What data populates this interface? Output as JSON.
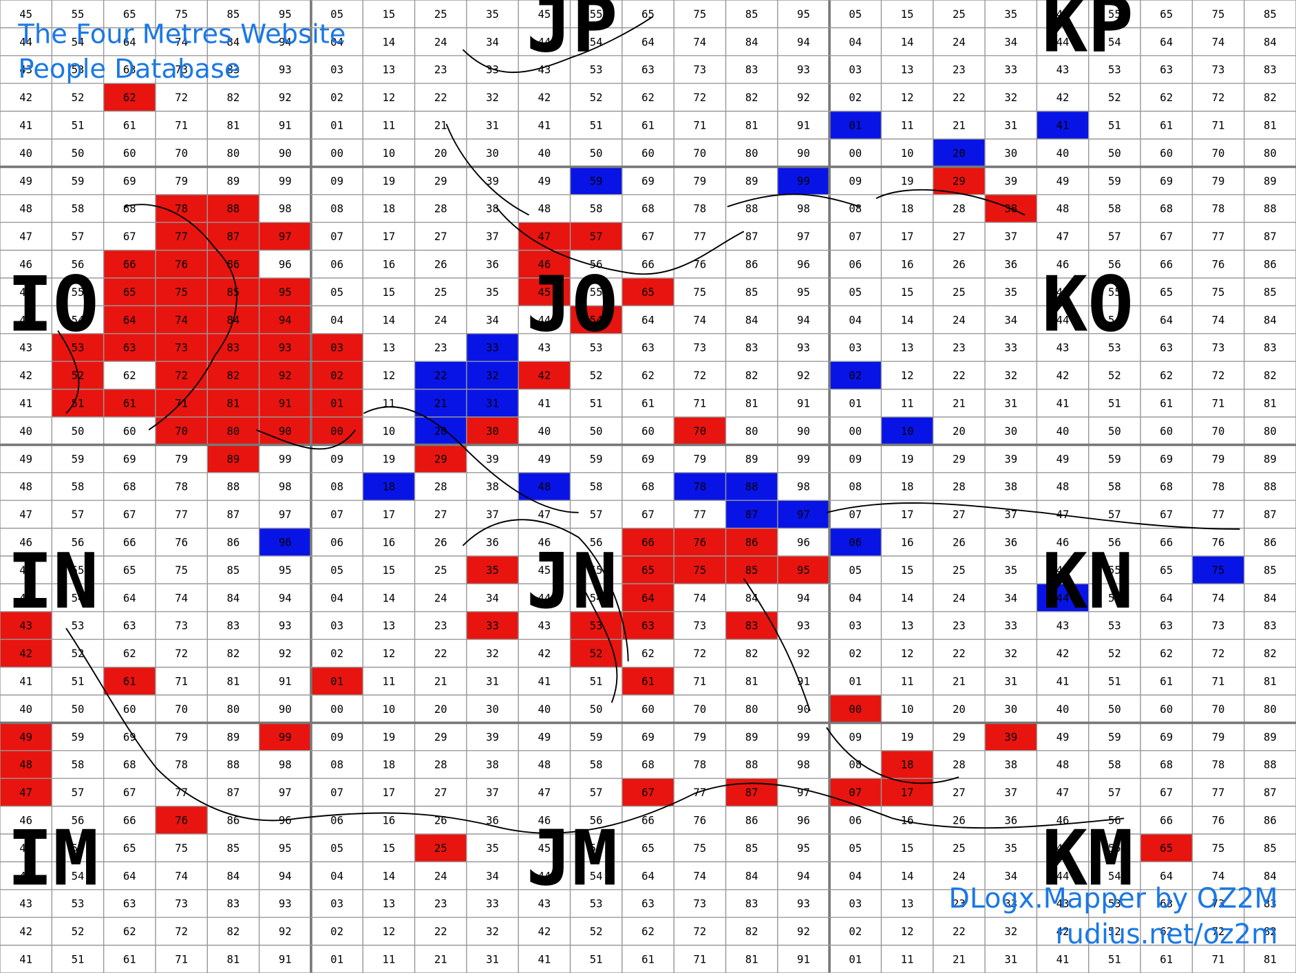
{
  "header": {
    "title": "The Four Metres Website",
    "subtitle": "People Database"
  },
  "fields": [
    "JP",
    "KP",
    "IO",
    "JO",
    "KO",
    "IN",
    "JN",
    "KN",
    "IM",
    "JM",
    "KM"
  ],
  "credits": [
    "DLogx.Mapper by OZ2M",
    "rudius.net/oz2m"
  ],
  "grid": {
    "rows": [
      [
        "45",
        "55",
        "65",
        "75",
        "85",
        "95",
        "05",
        "15",
        "25",
        "35",
        "45",
        "55",
        "65",
        "75",
        "85",
        "95",
        "05",
        "15",
        "25",
        "35",
        "45",
        "55",
        "65",
        "75",
        "85"
      ],
      [
        "44",
        "54",
        "64",
        "74",
        "84",
        "94",
        "04",
        "14",
        "24",
        "34",
        "44",
        "54",
        "64",
        "74",
        "84",
        "94",
        "04",
        "14",
        "24",
        "34",
        "44",
        "54",
        "64",
        "74",
        "84"
      ],
      [
        "43",
        "53",
        "63",
        "73",
        "83",
        "93",
        "03",
        "13",
        "23",
        "33",
        "43",
        "53",
        "63",
        "73",
        "83",
        "93",
        "03",
        "13",
        "23",
        "33",
        "43",
        "53",
        "63",
        "73",
        "83"
      ],
      [
        "42",
        "52",
        {
          "label": "62",
          "color": "#e8140f"
        },
        "72",
        "82",
        "92",
        "02",
        "12",
        "22",
        "32",
        "42",
        "52",
        "62",
        "72",
        "82",
        "92",
        "02",
        "12",
        "22",
        "32",
        "42",
        "52",
        "62",
        "72",
        "82"
      ],
      [
        "41",
        "51",
        "61",
        "71",
        "81",
        "91",
        "01",
        "11",
        "21",
        "31",
        "41",
        "51",
        "61",
        "71",
        "81",
        "91",
        {
          "label": "01",
          "color": "#0814e6"
        },
        "11",
        "21",
        "31",
        {
          "label": "41",
          "color": "#0814e6"
        },
        "51",
        "61",
        "71",
        "81"
      ],
      [
        "40",
        "50",
        "60",
        "70",
        "80",
        "90",
        "00",
        "10",
        "20",
        "30",
        "40",
        "50",
        "60",
        "70",
        "80",
        "90",
        "00",
        "10",
        {
          "label": "20",
          "color": "#0814e6"
        },
        "30",
        "40",
        "50",
        "60",
        "70",
        "80"
      ],
      [
        "49",
        "59",
        "69",
        "79",
        "89",
        "99",
        "09",
        "19",
        "29",
        "39",
        "49",
        {
          "label": "59",
          "color": "#0814e6"
        },
        "69",
        "79",
        "89",
        {
          "label": "99",
          "color": "#0814e6"
        },
        "09",
        "19",
        {
          "label": "29",
          "color": "#e8140f"
        },
        "39",
        "49",
        "59",
        "69",
        "79",
        "89"
      ],
      [
        "48",
        "58",
        "68",
        {
          "label": "78",
          "color": "#e8140f"
        },
        {
          "label": "88",
          "color": "#e8140f"
        },
        "98",
        "08",
        "18",
        "28",
        "38",
        "48",
        "58",
        "68",
        "78",
        "88",
        "98",
        "08",
        "18",
        "28",
        {
          "label": "38",
          "color": "#e8140f"
        },
        "48",
        "58",
        "68",
        "78",
        "88"
      ],
      [
        "47",
        "57",
        "67",
        {
          "label": "77",
          "color": "#e8140f"
        },
        {
          "label": "87",
          "color": "#e8140f"
        },
        {
          "label": "97",
          "color": "#e8140f"
        },
        "07",
        "17",
        "27",
        "37",
        {
          "label": "47",
          "color": "#e8140f"
        },
        {
          "label": "57",
          "color": "#e8140f"
        },
        "67",
        "77",
        "87",
        "97",
        "07",
        "17",
        "27",
        "37",
        "47",
        "57",
        "67",
        "77",
        "87"
      ],
      [
        "46",
        "56",
        {
          "label": "66",
          "color": "#e8140f"
        },
        {
          "label": "76",
          "color": "#e8140f"
        },
        {
          "label": "86",
          "color": "#e8140f"
        },
        "96",
        "06",
        "16",
        "26",
        "36",
        {
          "label": "46",
          "color": "#e8140f"
        },
        "56",
        "66",
        "76",
        "86",
        "96",
        "06",
        "16",
        "26",
        "36",
        "46",
        "56",
        "66",
        "76",
        "86"
      ],
      [
        "45",
        "55",
        {
          "label": "65",
          "color": "#e8140f"
        },
        {
          "label": "75",
          "color": "#e8140f"
        },
        {
          "label": "85",
          "color": "#e8140f"
        },
        {
          "label": "95",
          "color": "#e8140f"
        },
        "05",
        "15",
        "25",
        "35",
        {
          "label": "45",
          "color": "#e8140f"
        },
        "55",
        {
          "label": "65",
          "color": "#e8140f"
        },
        "75",
        "85",
        "95",
        "05",
        "15",
        "25",
        "35",
        "45",
        "55",
        "65",
        "75",
        "85"
      ],
      [
        "44",
        "54",
        {
          "label": "64",
          "color": "#e8140f"
        },
        {
          "label": "74",
          "color": "#e8140f"
        },
        {
          "label": "84",
          "color": "#e8140f"
        },
        {
          "label": "94",
          "color": "#e8140f"
        },
        "04",
        "14",
        "24",
        "34",
        "44",
        {
          "label": "54",
          "color": "#e8140f"
        },
        "64",
        "74",
        "84",
        "94",
        "04",
        "14",
        "24",
        "34",
        "44",
        "54",
        "64",
        "74",
        "84"
      ],
      [
        "43",
        {
          "label": "53",
          "color": "#e8140f"
        },
        {
          "label": "63",
          "color": "#e8140f"
        },
        {
          "label": "73",
          "color": "#e8140f"
        },
        {
          "label": "83",
          "color": "#e8140f"
        },
        {
          "label": "93",
          "color": "#e8140f"
        },
        {
          "label": "03",
          "color": "#e8140f"
        },
        "13",
        "23",
        {
          "label": "33",
          "color": "#0814e6"
        },
        "43",
        "53",
        "63",
        "73",
        "83",
        "93",
        "03",
        "13",
        "23",
        "33",
        "43",
        "53",
        "63",
        "73",
        "83"
      ],
      [
        "42",
        {
          "label": "52",
          "color": "#e8140f"
        },
        "62",
        {
          "label": "72",
          "color": "#e8140f"
        },
        {
          "label": "82",
          "color": "#e8140f"
        },
        {
          "label": "92",
          "color": "#e8140f"
        },
        {
          "label": "02",
          "color": "#e8140f"
        },
        "12",
        {
          "label": "22",
          "color": "#0814e6"
        },
        {
          "label": "32",
          "color": "#0814e6"
        },
        {
          "label": "42",
          "color": "#e8140f"
        },
        "52",
        "62",
        "72",
        "82",
        "92",
        {
          "label": "02",
          "color": "#0814e6"
        },
        "12",
        "22",
        "32",
        "42",
        "52",
        "62",
        "72",
        "82"
      ],
      [
        "41",
        {
          "label": "51",
          "color": "#e8140f"
        },
        {
          "label": "61",
          "color": "#e8140f"
        },
        {
          "label": "71",
          "color": "#e8140f"
        },
        {
          "label": "81",
          "color": "#e8140f"
        },
        {
          "label": "91",
          "color": "#e8140f"
        },
        {
          "label": "01",
          "color": "#e8140f"
        },
        "11",
        {
          "label": "21",
          "color": "#0814e6"
        },
        {
          "label": "31",
          "color": "#0814e6"
        },
        "41",
        "51",
        "61",
        "71",
        "81",
        "91",
        "01",
        "11",
        "21",
        "31",
        "41",
        "51",
        "61",
        "71",
        "81"
      ],
      [
        "40",
        "50",
        "60",
        {
          "label": "70",
          "color": "#e8140f"
        },
        {
          "label": "80",
          "color": "#e8140f"
        },
        {
          "label": "90",
          "color": "#e8140f"
        },
        {
          "label": "00",
          "color": "#e8140f"
        },
        "10",
        {
          "label": "20",
          "color": "#0814e6"
        },
        {
          "label": "30",
          "color": "#e8140f"
        },
        "40",
        "50",
        "60",
        {
          "label": "70",
          "color": "#e8140f"
        },
        "80",
        "90",
        "00",
        {
          "label": "10",
          "color": "#0814e6"
        },
        "20",
        "30",
        "40",
        "50",
        "60",
        "70",
        "80"
      ],
      [
        "49",
        "59",
        "69",
        "79",
        {
          "label": "89",
          "color": "#e8140f"
        },
        "99",
        "09",
        "19",
        {
          "label": "29",
          "color": "#e8140f"
        },
        "39",
        "49",
        "59",
        "69",
        "79",
        "89",
        "99",
        "09",
        "19",
        "29",
        "39",
        "49",
        "59",
        "69",
        "79",
        "89"
      ],
      [
        "48",
        "58",
        "68",
        "78",
        "88",
        "98",
        "08",
        {
          "label": "18",
          "color": "#0814e6"
        },
        "28",
        "38",
        {
          "label": "48",
          "color": "#0814e6"
        },
        "58",
        "68",
        {
          "label": "78",
          "color": "#0814e6"
        },
        {
          "label": "88",
          "color": "#0814e6"
        },
        "98",
        "08",
        "18",
        "28",
        "38",
        "48",
        "58",
        "68",
        "78",
        "88"
      ],
      [
        "47",
        "57",
        "67",
        "77",
        "87",
        "97",
        "07",
        "17",
        "27",
        "37",
        "47",
        "57",
        "67",
        "77",
        {
          "label": "87",
          "color": "#0814e6"
        },
        {
          "label": "97",
          "color": "#0814e6"
        },
        "07",
        "17",
        "27",
        "37",
        "47",
        "57",
        "67",
        "77",
        "87"
      ],
      [
        "46",
        "56",
        "66",
        "76",
        "86",
        {
          "label": "96",
          "color": "#0814e6"
        },
        "06",
        "16",
        "26",
        "36",
        "46",
        "56",
        {
          "label": "66",
          "color": "#e8140f"
        },
        {
          "label": "76",
          "color": "#e8140f"
        },
        {
          "label": "86",
          "color": "#e8140f"
        },
        "96",
        {
          "label": "06",
          "color": "#0814e6"
        },
        "16",
        "26",
        "36",
        "46",
        "56",
        "66",
        "76",
        "86"
      ],
      [
        "45",
        "55",
        "65",
        "75",
        "85",
        "95",
        "05",
        "15",
        "25",
        {
          "label": "35",
          "color": "#e8140f"
        },
        "45",
        "55",
        {
          "label": "65",
          "color": "#e8140f"
        },
        {
          "label": "75",
          "color": "#e8140f"
        },
        {
          "label": "85",
          "color": "#e8140f"
        },
        {
          "label": "95",
          "color": "#e8140f"
        },
        "05",
        "15",
        "25",
        "35",
        "45",
        "55",
        "65",
        {
          "label": "75",
          "color": "#0814e6"
        },
        "85"
      ],
      [
        "44",
        "54",
        "64",
        "74",
        "84",
        "94",
        "04",
        "14",
        "24",
        "34",
        "44",
        "54",
        {
          "label": "64",
          "color": "#e8140f"
        },
        "74",
        "84",
        "94",
        "04",
        "14",
        "24",
        "34",
        {
          "label": "44",
          "color": "#0814e6"
        },
        "54",
        "64",
        "74",
        "84"
      ],
      [
        {
          "label": "43",
          "color": "#e8140f"
        },
        "53",
        "63",
        "73",
        "83",
        "93",
        "03",
        "13",
        "23",
        {
          "label": "33",
          "color": "#e8140f"
        },
        "43",
        {
          "label": "53",
          "color": "#e8140f"
        },
        {
          "label": "63",
          "color": "#e8140f"
        },
        "73",
        {
          "label": "83",
          "color": "#e8140f"
        },
        "93",
        "03",
        "13",
        "23",
        "33",
        "43",
        "53",
        "63",
        "73",
        "83"
      ],
      [
        {
          "label": "42",
          "color": "#e8140f"
        },
        "52",
        "62",
        "72",
        "82",
        "92",
        "02",
        "12",
        "22",
        "32",
        "42",
        {
          "label": "52",
          "color": "#e8140f"
        },
        "62",
        "72",
        "82",
        "92",
        "02",
        "12",
        "22",
        "32",
        "42",
        "52",
        "62",
        "72",
        "82"
      ],
      [
        "41",
        "51",
        {
          "label": "61",
          "color": "#e8140f"
        },
        "71",
        "81",
        "91",
        {
          "label": "01",
          "color": "#e8140f"
        },
        "11",
        "21",
        "31",
        "41",
        "51",
        {
          "label": "61",
          "color": "#e8140f"
        },
        "71",
        "81",
        "91",
        "01",
        "11",
        "21",
        "31",
        "41",
        "51",
        "61",
        "71",
        "81"
      ],
      [
        "40",
        "50",
        "60",
        "70",
        "80",
        "90",
        "00",
        "10",
        "20",
        "30",
        "40",
        "50",
        "60",
        "70",
        "80",
        "90",
        {
          "label": "00",
          "color": "#e8140f"
        },
        "10",
        "20",
        "30",
        "40",
        "50",
        "60",
        "70",
        "80"
      ],
      [
        {
          "label": "49",
          "color": "#e8140f"
        },
        "59",
        "69",
        "79",
        "89",
        {
          "label": "99",
          "color": "#e8140f"
        },
        "09",
        "19",
        "29",
        "39",
        "49",
        "59",
        "69",
        "79",
        "89",
        "99",
        "09",
        "19",
        "29",
        {
          "label": "39",
          "color": "#e8140f"
        },
        "49",
        "59",
        "69",
        "79",
        "89"
      ],
      [
        {
          "label": "48",
          "color": "#e8140f"
        },
        "58",
        "68",
        "78",
        "88",
        "98",
        "08",
        "18",
        "28",
        "38",
        "48",
        "58",
        "68",
        "78",
        "88",
        "98",
        "08",
        {
          "label": "18",
          "color": "#e8140f"
        },
        "28",
        "38",
        "48",
        "58",
        "68",
        "78",
        "88"
      ],
      [
        {
          "label": "47",
          "color": "#e8140f"
        },
        "57",
        "67",
        "77",
        "87",
        "97",
        "07",
        "17",
        "27",
        "37",
        "47",
        "57",
        {
          "label": "67",
          "color": "#e8140f"
        },
        "77",
        {
          "label": "87",
          "color": "#e8140f"
        },
        "97",
        {
          "label": "07",
          "color": "#e8140f"
        },
        {
          "label": "17",
          "color": "#e8140f"
        },
        "27",
        "37",
        "47",
        "57",
        "67",
        "77",
        "87"
      ],
      [
        "46",
        "56",
        "66",
        {
          "label": "76",
          "color": "#e8140f"
        },
        "86",
        "96",
        "06",
        "16",
        "26",
        "36",
        "46",
        "56",
        "66",
        "76",
        "86",
        "96",
        "06",
        "16",
        "26",
        "36",
        "46",
        "56",
        "66",
        "76",
        "86"
      ],
      [
        "45",
        "55",
        "65",
        "75",
        "85",
        "95",
        "05",
        "15",
        {
          "label": "25",
          "color": "#e8140f"
        },
        "35",
        "45",
        "55",
        "65",
        "75",
        "85",
        "95",
        "05",
        "15",
        "25",
        "35",
        "45",
        "55",
        {
          "label": "65",
          "color": "#e8140f"
        },
        "75",
        "85"
      ],
      [
        "44",
        "54",
        "64",
        "74",
        "84",
        "94",
        "04",
        "14",
        "24",
        "34",
        "44",
        "54",
        "64",
        "74",
        "84",
        "94",
        "04",
        "14",
        "24",
        "34",
        "44",
        "54",
        "64",
        "74",
        "84"
      ],
      [
        "43",
        "53",
        "63",
        "73",
        "83",
        "93",
        "03",
        "13",
        "23",
        "33",
        "43",
        "53",
        "63",
        "73",
        "83",
        "93",
        "03",
        "13",
        "23",
        "33",
        "43",
        "53",
        "63",
        "73",
        "83"
      ],
      [
        "42",
        "52",
        "62",
        "72",
        "82",
        "92",
        "02",
        "12",
        "22",
        "32",
        "42",
        "52",
        "62",
        "72",
        "82",
        "92",
        "02",
        "12",
        "22",
        "32",
        "42",
        "52",
        "62",
        "72",
        "82"
      ],
      [
        "41",
        "51",
        "61",
        "71",
        "81",
        "91",
        "01",
        "11",
        "21",
        "31",
        "41",
        "51",
        "61",
        "71",
        "81",
        "91",
        "01",
        "11",
        "21",
        "31",
        "41",
        "51",
        "61",
        "71",
        "81"
      ]
    ]
  }
}
